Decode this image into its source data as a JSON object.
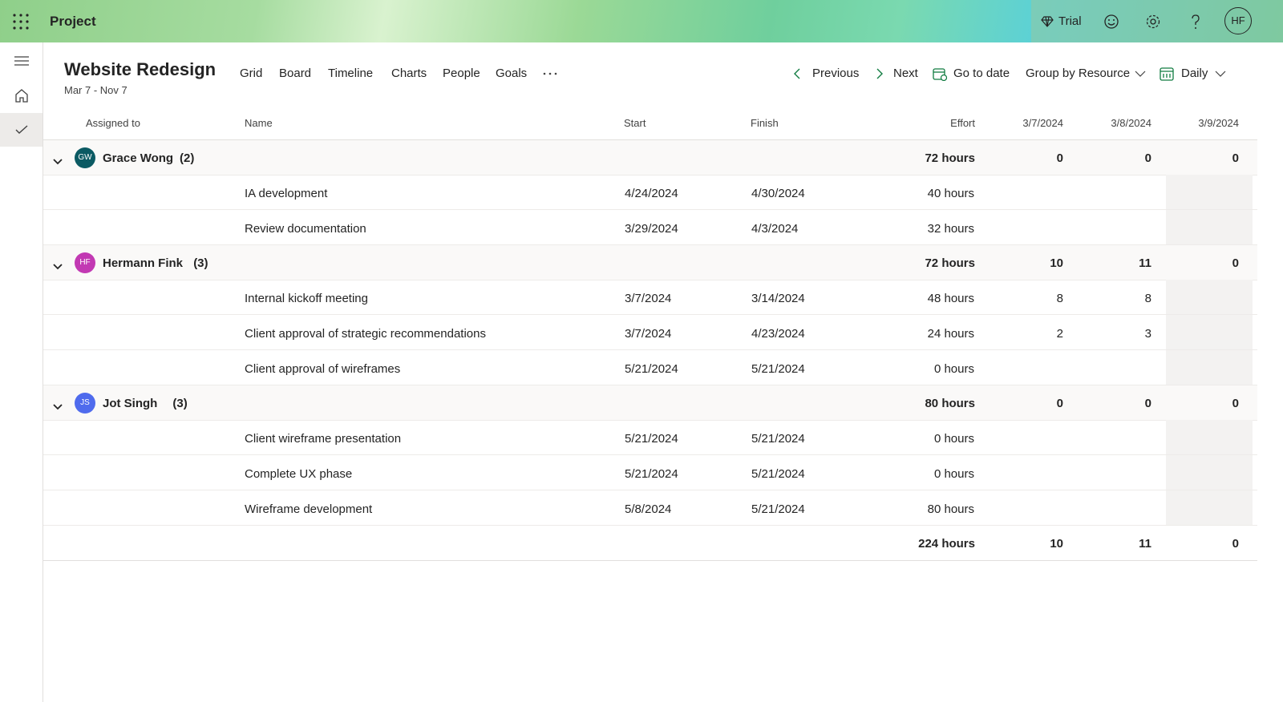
{
  "app": {
    "name": "Project",
    "trial": "Trial",
    "avatar": "HF"
  },
  "project": {
    "title": "Website Redesign",
    "dates": "Mar 7 - Nov 7"
  },
  "tabs": [
    "Grid",
    "Board",
    "Timeline",
    "Charts",
    "People",
    "Goals"
  ],
  "toolbar": {
    "previous": "Previous",
    "next": "Next",
    "go_to_date": "Go to date",
    "group_by": "Group by Resource",
    "scale": "Daily"
  },
  "table": {
    "columns": [
      "Assigned to",
      "Name",
      "Start",
      "Finish",
      "Effort",
      "3/7/2024",
      "3/8/2024",
      "3/9/2024"
    ],
    "groups": [
      {
        "initials": "GW",
        "name": "Grace Wong",
        "count": "(2)",
        "color": "#0b5a63",
        "effort": "72 hours",
        "days": [
          0,
          0,
          0
        ],
        "rows": [
          {
            "name": "IA development",
            "start": "4/24/2024",
            "finish": "4/30/2024",
            "effort": "40 hours"
          },
          {
            "name": "Review documentation",
            "start": "3/29/2024",
            "finish": "4/3/2024",
            "effort": "32 hours"
          }
        ]
      },
      {
        "initials": "HF",
        "name": "Hermann Fink",
        "count": "(3)",
        "color": "#c239b3",
        "effort": "72 hours",
        "days": [
          10,
          11,
          0
        ],
        "rows": [
          {
            "name": "Internal kickoff meeting",
            "start": "3/7/2024",
            "finish": "3/14/2024",
            "effort": "48 hours",
            "days": [
              8,
              8
            ]
          },
          {
            "name": "Client approval of strategic recommendations",
            "start": "3/7/2024",
            "finish": "4/23/2024",
            "effort": "24 hours",
            "days": [
              2,
              3
            ]
          },
          {
            "name": "Client approval of wireframes",
            "start": "5/21/2024",
            "finish": "5/21/2024",
            "effort": "0 hours"
          }
        ]
      },
      {
        "initials": "JS",
        "name": "Jot Singh",
        "count": "(3)",
        "color": "#4f6bed",
        "effort": "80 hours",
        "days": [
          0,
          0,
          0
        ],
        "rows": [
          {
            "name": "Client wireframe presentation",
            "start": "5/21/2024",
            "finish": "5/21/2024",
            "effort": "0 hours"
          },
          {
            "name": "Complete UX phase",
            "start": "5/21/2024",
            "finish": "5/21/2024",
            "effort": "0 hours"
          },
          {
            "name": "Wireframe development",
            "start": "5/8/2024",
            "finish": "5/21/2024",
            "effort": "80 hours"
          }
        ]
      }
    ],
    "totals": {
      "effort": "224 hours",
      "days": [
        10,
        11,
        0
      ]
    }
  }
}
